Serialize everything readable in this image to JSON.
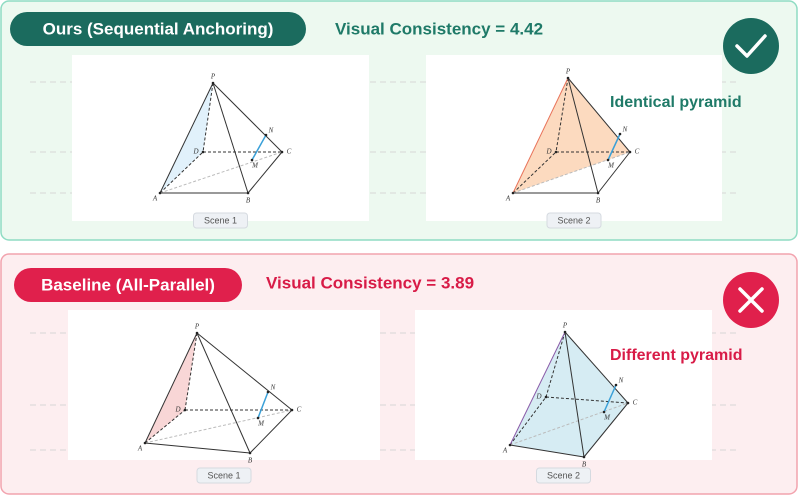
{
  "panels": [
    {
      "title": "Ours (Sequential Anchoring)",
      "score": "Visual Consistency = 4.42",
      "note": "Identical pyramid",
      "scenes": [
        {
          "caption": "Scene 1",
          "labels": [
            "P",
            "D",
            "C",
            "A",
            "B",
            "N",
            "M"
          ]
        },
        {
          "caption": "Scene 2",
          "labels": [
            "P",
            "D",
            "C",
            "A",
            "B",
            "N",
            "M"
          ]
        }
      ]
    },
    {
      "title": "Baseline (All-Parallel)",
      "score": "Visual Consistency = 3.89",
      "note": "Different pyramid",
      "scenes": [
        {
          "caption": "Scene 1",
          "labels": [
            "P",
            "D",
            "C",
            "A",
            "B",
            "N",
            "M"
          ]
        },
        {
          "caption": "Scene 2",
          "labels": [
            "P",
            "D",
            "C",
            "A",
            "B",
            "N",
            "M"
          ]
        }
      ]
    }
  ]
}
